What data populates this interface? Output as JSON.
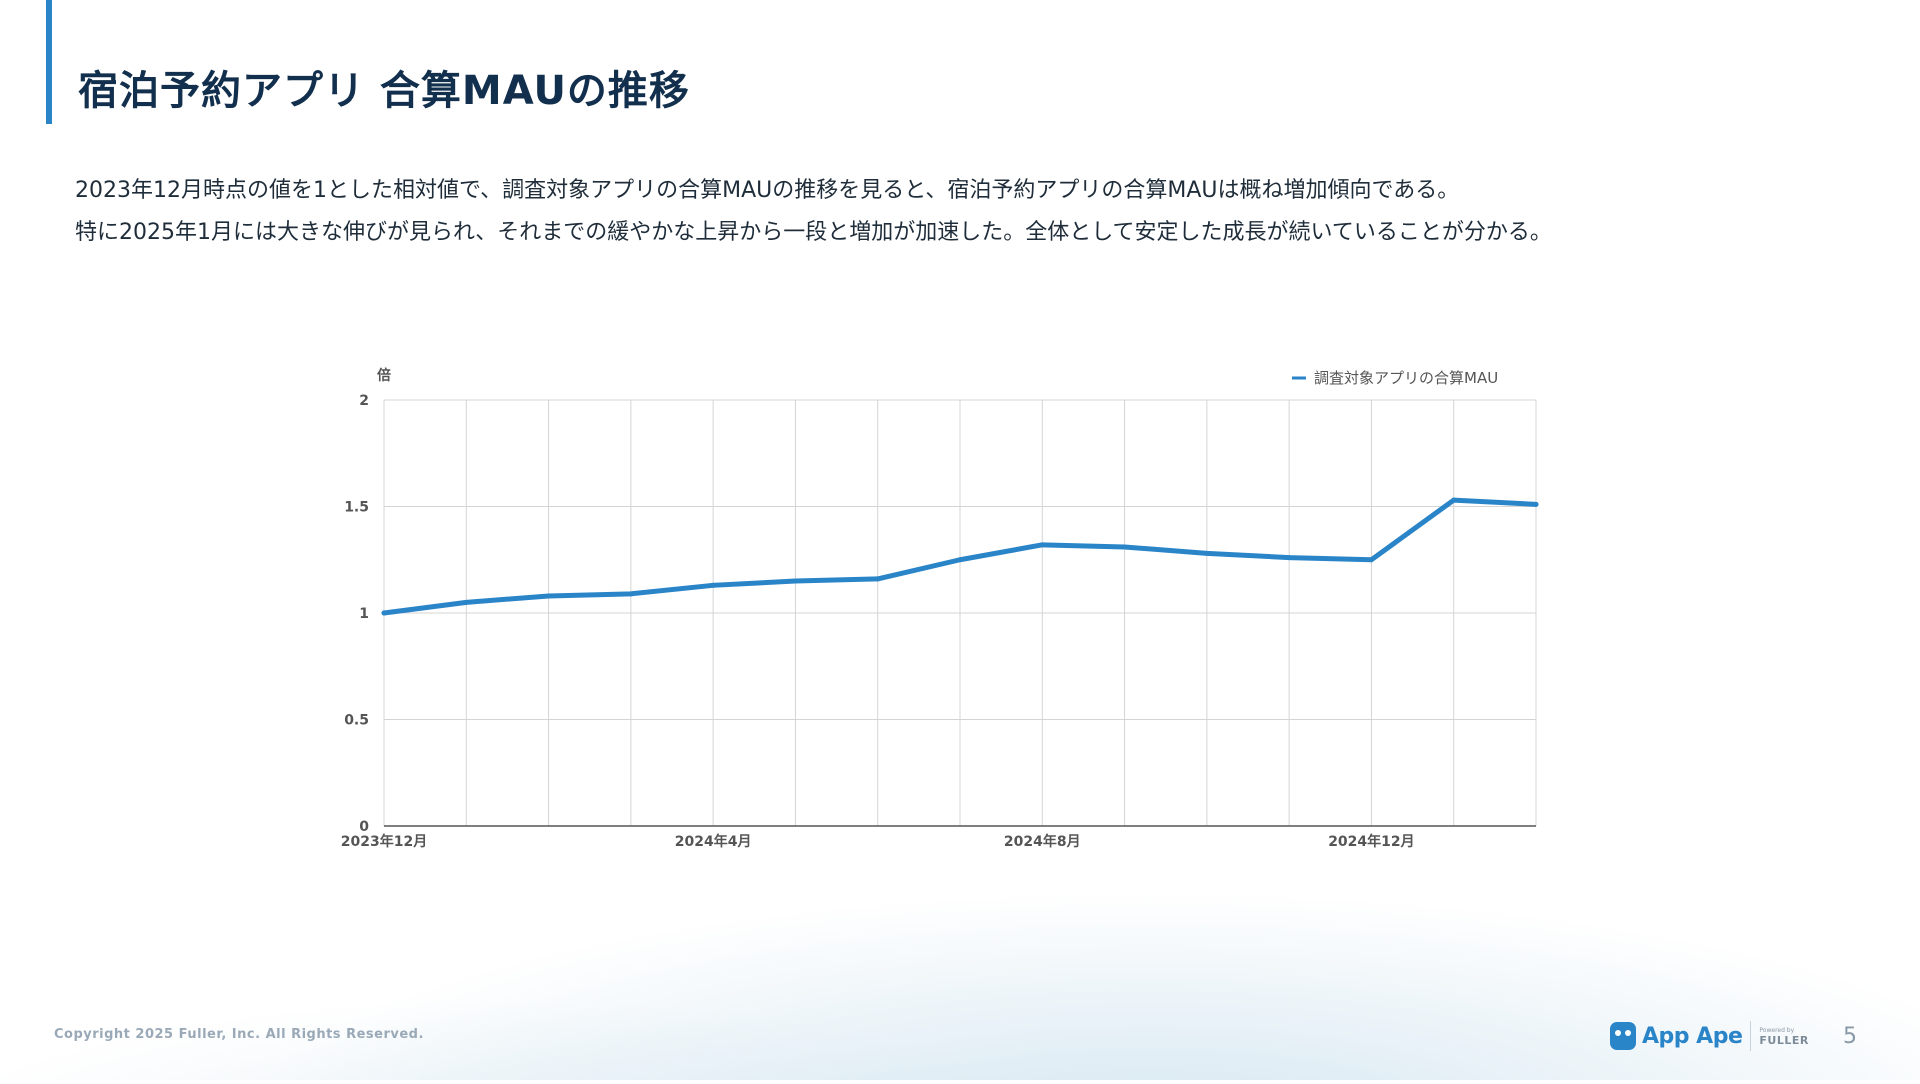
{
  "slide": {
    "title": "宿泊予約アプリ 合算MAUの推移",
    "description": [
      "2023年12月時点の値を1とした相対値で、調査対象アプリの合算MAUの推移を見ると、宿泊予約アプリの合算MAUは概ね増加傾向である。",
      "特に2025年1月には大きな伸びが見られ、それまでの緩やかな上昇から一段と増加が加速した。全体として安定した成長が続いていることが分かる。"
    ],
    "footer": {
      "copyright": "Copyright 2025 Fuller, Inc. All Rights Reserved.",
      "brand": "App Ape",
      "powered_by": "Powered by",
      "company": "FULLER",
      "page_number": "5"
    }
  },
  "colors": {
    "line": "#2a84c8",
    "accent": "#2a84c8",
    "grid": "#d4d4d4",
    "axis": "#555555",
    "tick_text": "#555555"
  },
  "chart_data": {
    "type": "line",
    "ylabel": "倍",
    "xlabel": "",
    "ylim": [
      0,
      2
    ],
    "yticks": [
      0,
      0.5,
      1,
      1.5,
      2
    ],
    "ytick_labels": [
      "0",
      "0.5",
      "1",
      "1.5",
      "2"
    ],
    "x": [
      "2023年12月",
      "2024年1月",
      "2024年2月",
      "2024年3月",
      "2024年4月",
      "2024年5月",
      "2024年6月",
      "2024年7月",
      "2024年8月",
      "2024年9月",
      "2024年10月",
      "2024年11月",
      "2024年12月",
      "2025年1月",
      "2025年2月"
    ],
    "x_tick_labels_shown": [
      "2023年12月",
      "2024年4月",
      "2024年8月",
      "2024年12月"
    ],
    "x_tick_label_indices": [
      0,
      4,
      8,
      12
    ],
    "grid": true,
    "legend_position": "top-right",
    "series": [
      {
        "name": "調査対象アプリの合算MAU",
        "values": [
          1.0,
          1.05,
          1.08,
          1.09,
          1.13,
          1.15,
          1.16,
          1.25,
          1.32,
          1.31,
          1.28,
          1.26,
          1.25,
          1.53,
          1.51
        ]
      }
    ]
  }
}
